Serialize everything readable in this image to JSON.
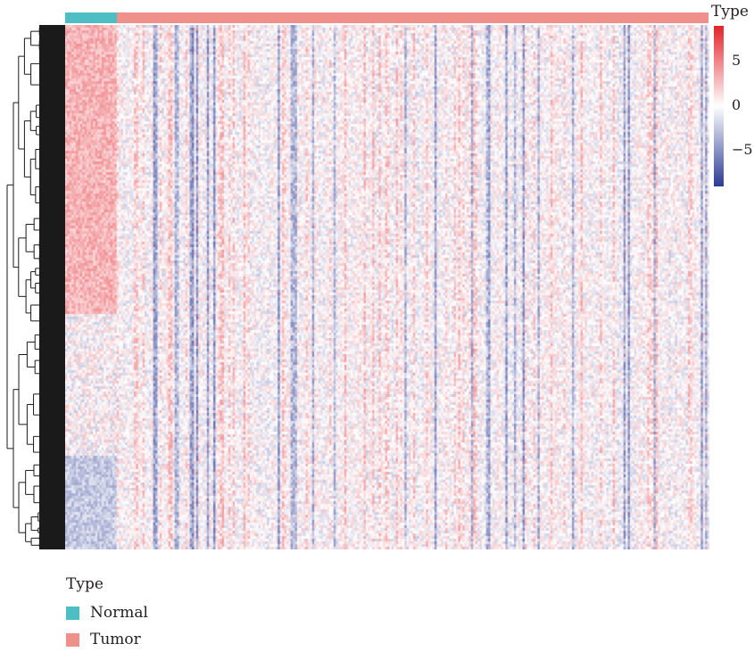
{
  "chart_data": {
    "type": "heatmap",
    "row_dendrogram": true,
    "annotation": {
      "title": "Type",
      "groups": [
        {
          "name": "Normal",
          "color": "#4dbec4",
          "sample_fraction": 0.08
        },
        {
          "name": "Tumor",
          "color": "#f0908a",
          "sample_fraction": 0.92
        }
      ]
    },
    "colorbar": {
      "title": "Type",
      "ticks": [
        {
          "value": 5,
          "label": "5"
        },
        {
          "value": 0,
          "label": "0"
        },
        {
          "value": -5,
          "label": "−5"
        }
      ],
      "range": [
        -9,
        9
      ],
      "colors": {
        "low": "#2b3a94",
        "mid": "#ffffff",
        "high": "#e3232b"
      }
    }
  }
}
